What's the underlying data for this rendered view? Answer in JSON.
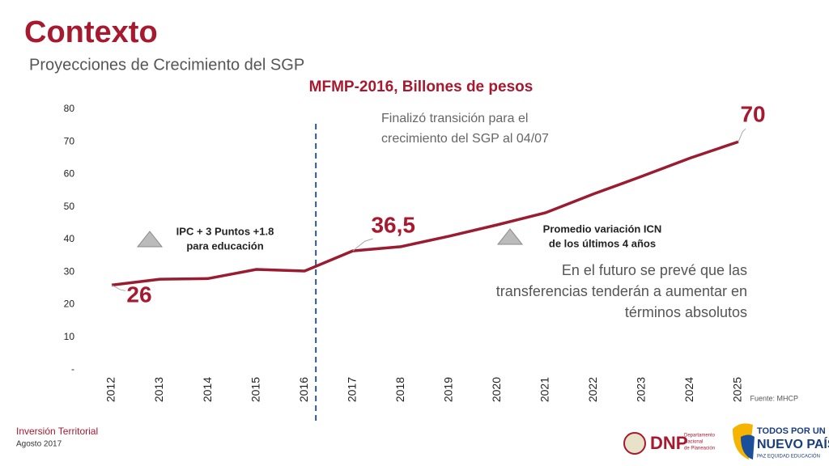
{
  "header": {
    "title": "Contexto",
    "subtitle": "Proyecciones de Crecimiento del SGP"
  },
  "chart_data": {
    "type": "line",
    "title": "MFMP-2016, Billones de pesos",
    "categories": [
      "2012",
      "2013",
      "2014",
      "2015",
      "2016",
      "2017",
      "2018",
      "2019",
      "2020",
      "2021",
      "2022",
      "2023",
      "2024",
      "2025"
    ],
    "series": [
      {
        "name": null,
        "color": "#9b1b30",
        "values": [
          26,
          27.8,
          28,
          30.8,
          30.3,
          36.5,
          37.8,
          41,
          44.5,
          48.2,
          54,
          59.4,
          65,
          70
        ]
      }
    ],
    "value_labels": [
      "26",
      null,
      null,
      null,
      null,
      "36,5",
      null,
      null,
      null,
      null,
      null,
      null,
      null,
      "70"
    ],
    "ylim": [
      0,
      80
    ],
    "yticks": [
      {
        "value": 0,
        "label": "-"
      },
      10,
      20,
      30,
      40,
      50,
      60,
      70,
      80
    ],
    "grid": false,
    "annotations": [
      [
        "Finalizó transición para el",
        "crecimiento del SGP al 04/07"
      ],
      [
        "IPC + 3 Puntos +1.8",
        "para educación"
      ],
      [
        "Promedio variación ICN",
        "de los últimos 4 años"
      ],
      [
        "En el futuro se prevé que las",
        "transferencias tenderán a aumentar en",
        "términos absolutos"
      ]
    ],
    "source": "Fuente: MHCP"
  },
  "footer": {
    "org": "Inversión Territorial",
    "date": "Agosto 2017",
    "logos": [
      "DNP",
      "Departamento",
      "Nacional",
      "de Planeación",
      "TODOS POR UN",
      "NUEVO PAÍS",
      "PAZ  EQUIDAD  EDUCACIÓN"
    ]
  }
}
